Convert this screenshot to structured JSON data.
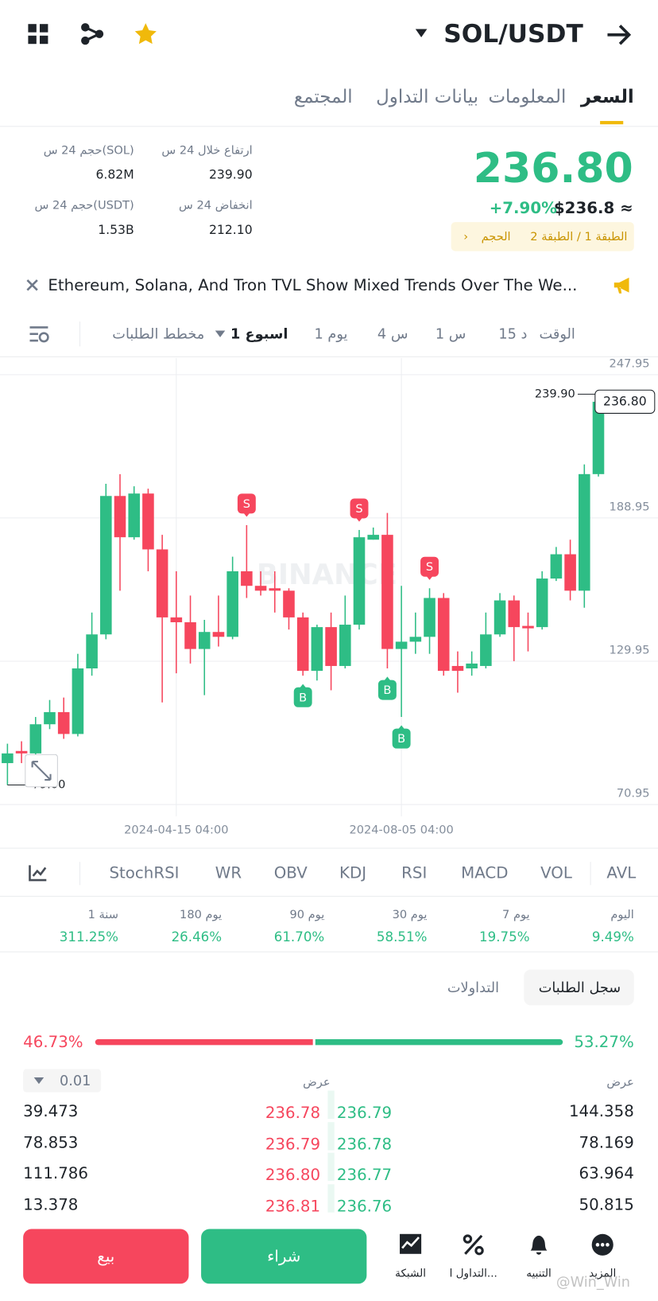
{
  "header": {
    "pair": "SOL/USDT"
  },
  "tabs": [
    "السعر",
    "المعلومات",
    "بيانات التداول",
    "المجتمع"
  ],
  "price": {
    "last": "236.80",
    "usd": "$236.8 ≈",
    "change": "+7.90%",
    "tags": "الطبقة 1 / الطبقة 2",
    "tag_volume": "الحجم"
  },
  "stats": [
    {
      "label": "ارتفاع خلال 24 س",
      "value": "239.90"
    },
    {
      "label": "حجم 24 س(SOL)",
      "value": "6.82M"
    },
    {
      "label": "انخفاض 24 س",
      "value": "212.10"
    },
    {
      "label": "حجم 24 س(USDT)",
      "value": "1.53B"
    }
  ],
  "news": "Ethereum, Solana, And Tron TVL Show Mixed Trends Over The We...",
  "intervals": [
    "الوقت",
    "15 د",
    "1 س",
    "4 س",
    "1 يوم",
    "1 اسبوع",
    "مخطط الطلبات"
  ],
  "chart_data": {
    "type": "candlestick",
    "watermark": "BINANCE",
    "categories": [
      null,
      null,
      null,
      null,
      null,
      null,
      null,
      null,
      null,
      null,
      null,
      null,
      "2024-04-15 04:00",
      null,
      null,
      null,
      null,
      null,
      null,
      null,
      null,
      null,
      null,
      null,
      null,
      null,
      null,
      null,
      "2024-08-05 04:00",
      null,
      null,
      null,
      null,
      null,
      null,
      null,
      null,
      null,
      null,
      null,
      null,
      null,
      null
    ],
    "open": [
      88,
      93,
      92,
      104,
      109,
      100,
      127,
      141,
      198,
      181,
      199,
      176,
      148,
      146,
      135,
      142,
      140,
      167,
      161,
      160,
      159,
      148,
      126,
      144,
      128,
      145,
      180,
      182,
      135,
      138,
      140,
      156,
      128,
      127,
      128,
      141,
      155,
      144.5,
      144,
      164,
      174,
      159,
      207
    ],
    "high": [
      96,
      97,
      107,
      114,
      115,
      133,
      150,
      203,
      207,
      202,
      201,
      182,
      167,
      157,
      147,
      157,
      173,
      186,
      167,
      167,
      160,
      150,
      145,
      150,
      157,
      184,
      185,
      191,
      161,
      150,
      160,
      158,
      134,
      134,
      150,
      158,
      157,
      150,
      167,
      177,
      180,
      211,
      239.9
    ],
    "low": [
      79,
      88,
      91,
      102,
      98,
      99,
      124,
      139,
      159,
      180,
      167,
      113,
      125,
      129,
      116,
      136,
      139,
      156,
      157,
      150,
      143,
      124,
      122,
      118,
      127,
      143,
      180,
      127,
      107,
      133,
      133,
      124,
      117,
      124,
      127,
      140,
      130,
      134,
      143,
      163,
      155,
      152,
      206
    ],
    "close": [
      92,
      92,
      104,
      109,
      100,
      127,
      141,
      198,
      181,
      199,
      176,
      148,
      146,
      135,
      142,
      140,
      167,
      161,
      159,
      159,
      148,
      126,
      144,
      128,
      145,
      181,
      182,
      135,
      138,
      140,
      156,
      126,
      126,
      129,
      141,
      155,
      144,
      143.5,
      164,
      174,
      159,
      207,
      236.8
    ],
    "up_color": "#2ebd85",
    "down_color": "#f6465d",
    "ylim": [
      66.1,
      254.8
    ],
    "yticks": [
      70.95,
      129.95,
      188.95,
      247.95
    ],
    "grid": true,
    "max_marker": {
      "value": 239.9,
      "label": "239.90"
    },
    "min_marker": {
      "value": 79,
      "label": "79.00"
    },
    "last_price": {
      "value": 236.8,
      "label": "236.80"
    },
    "signals": [
      {
        "candle": 17,
        "label": "S"
      },
      {
        "candle": 25,
        "label": "S"
      },
      {
        "candle": 30,
        "label": "S"
      },
      {
        "candle": 21,
        "label": "B"
      },
      {
        "candle": 27,
        "label": "B"
      },
      {
        "candle": 28,
        "label": "B"
      }
    ]
  },
  "indicators": [
    "VOL",
    "MACD",
    "RSI",
    "KDJ",
    "OBV",
    "WR",
    "StochRSI",
    "AVL"
  ],
  "performance": [
    {
      "label": "اليوم",
      "value": "9.49%"
    },
    {
      "label": "7 يوم",
      "value": "19.75%"
    },
    {
      "label": "30 يوم",
      "value": "58.51%"
    },
    {
      "label": "90 يوم",
      "value": "61.70%"
    },
    {
      "label": "180 يوم",
      "value": "26.46%"
    },
    {
      "label": "1 سنة",
      "value": "311.25%"
    }
  ],
  "order_tabs": [
    "سجل الطلبات",
    "التداولات"
  ],
  "ratio": {
    "sell": {
      "value": 46.73,
      "label": "46.73%"
    },
    "buy": {
      "value": 53.27,
      "label": "53.27%"
    }
  },
  "depth": {
    "precision": "0.01",
    "mid_header": "عرض",
    "right_header": "عرض",
    "rows": [
      [
        "39.473",
        "236.78",
        "236.79",
        "144.358"
      ],
      [
        "78.853",
        "236.79",
        "236.78",
        "78.169"
      ],
      [
        "111.786",
        "236.80",
        "236.77",
        "63.964"
      ],
      [
        "13.378",
        "236.81",
        "236.76",
        "50.815"
      ]
    ]
  },
  "bottom": {
    "sell": "بيع",
    "buy": "شراء",
    "nav": [
      "المزيد",
      "التنبيه",
      "التداول ا...",
      "الشبكة"
    ],
    "watermark": "@Win_Win"
  }
}
